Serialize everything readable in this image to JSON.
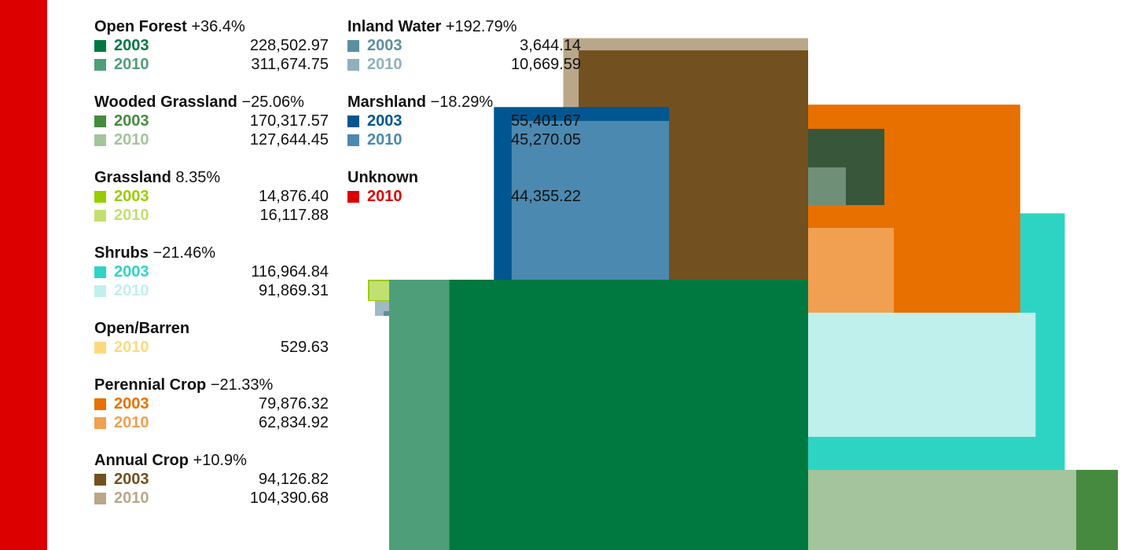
{
  "chart_data": {
    "type": "area",
    "units": "",
    "categories": [
      {
        "id": "open_forest",
        "name": "Open Forest",
        "change": "+36.4%",
        "values": [
          {
            "year": "2003",
            "value": 228502.97,
            "display": "228,502.97",
            "color": "#007940"
          },
          {
            "year": "2010",
            "value": 311674.75,
            "display": "311,674.75",
            "color": "#4f9e7a"
          }
        ]
      },
      {
        "id": "wooded_grassland",
        "name": "Wooded Grassland",
        "change": "−25.06%",
        "values": [
          {
            "year": "2003",
            "value": 170317.57,
            "display": "170,317.57",
            "color": "#458a3e"
          },
          {
            "year": "2010",
            "value": 127644.45,
            "display": "127,644.45",
            "color": "#a3c49c"
          }
        ]
      },
      {
        "id": "grassland",
        "name": "Grassland",
        "change": "8.35%",
        "values": [
          {
            "year": "2003",
            "value": 14876.4,
            "display": "14,876.40",
            "color": "#99cc00"
          },
          {
            "year": "2010",
            "value": 16117.88,
            "display": "16,117.88",
            "color": "#c2e070"
          }
        ]
      },
      {
        "id": "shrubs",
        "name": "Shrubs",
        "change": "−21.46%",
        "values": [
          {
            "year": "2003",
            "value": 116964.84,
            "display": "116,964.84",
            "color": "#2dd4c4"
          },
          {
            "year": "2010",
            "value": 91869.31,
            "display": "91,869.31",
            "color": "#c0f0eb"
          }
        ]
      },
      {
        "id": "open_barren",
        "name": "Open/Barren",
        "change": "",
        "values": [
          {
            "year": "2010",
            "value": 529.63,
            "display": "529.63",
            "color": "#ffd980"
          }
        ]
      },
      {
        "id": "perennial_crop",
        "name": "Perennial Crop",
        "change": "−21.33%",
        "values": [
          {
            "year": "2003",
            "value": 79876.32,
            "display": "79,876.32",
            "color": "#e87000"
          },
          {
            "year": "2010",
            "value": 62834.92,
            "display": "62,834.92",
            "color": "#f0a050"
          }
        ]
      },
      {
        "id": "annual_crop",
        "name": "Annual Crop",
        "change": "+10.9%",
        "values": [
          {
            "year": "2003",
            "value": 94126.82,
            "display": "94,126.82",
            "color": "#725020"
          },
          {
            "year": "2010",
            "value": 104390.68,
            "display": "104,390.68",
            "color": "#baa78a"
          }
        ]
      },
      {
        "id": "inland_water",
        "name": "Inland Water",
        "change": "+192.79%",
        "values": [
          {
            "year": "2003",
            "value": 3644.14,
            "display": "3,644.14",
            "color": "#5a8fa0"
          },
          {
            "year": "2010",
            "value": 10669.59,
            "display": "10,669.59",
            "color": "#8fb0bc"
          }
        ]
      },
      {
        "id": "marshland",
        "name": "Marshland",
        "change": "−18.29%",
        "values": [
          {
            "year": "2003",
            "value": 55401.67,
            "display": "55,401.67",
            "color": "#005690"
          },
          {
            "year": "2010",
            "value": 45270.05,
            "display": "45,270.05",
            "color": "#4b89b0"
          }
        ]
      },
      {
        "id": "unknown",
        "name": "Unknown",
        "change": "",
        "values": [
          {
            "year": "2010",
            "value": 44355.22,
            "display": "44,355.22",
            "color": "#dd0000"
          }
        ]
      }
    ],
    "legend_columns": [
      [
        "open_forest",
        "wooded_grassland",
        "grassland",
        "shrubs",
        "open_barren",
        "perennial_crop",
        "annual_crop"
      ],
      [
        "inland_water",
        "marshland",
        "unknown"
      ]
    ],
    "extra_colors": {
      "dark_forest": "#38563a",
      "gray_green": "#6f8f77",
      "gray": "#b0b0b0",
      "gray_blue": "#a0bac4",
      "accent_red": "#dd0000"
    }
  }
}
